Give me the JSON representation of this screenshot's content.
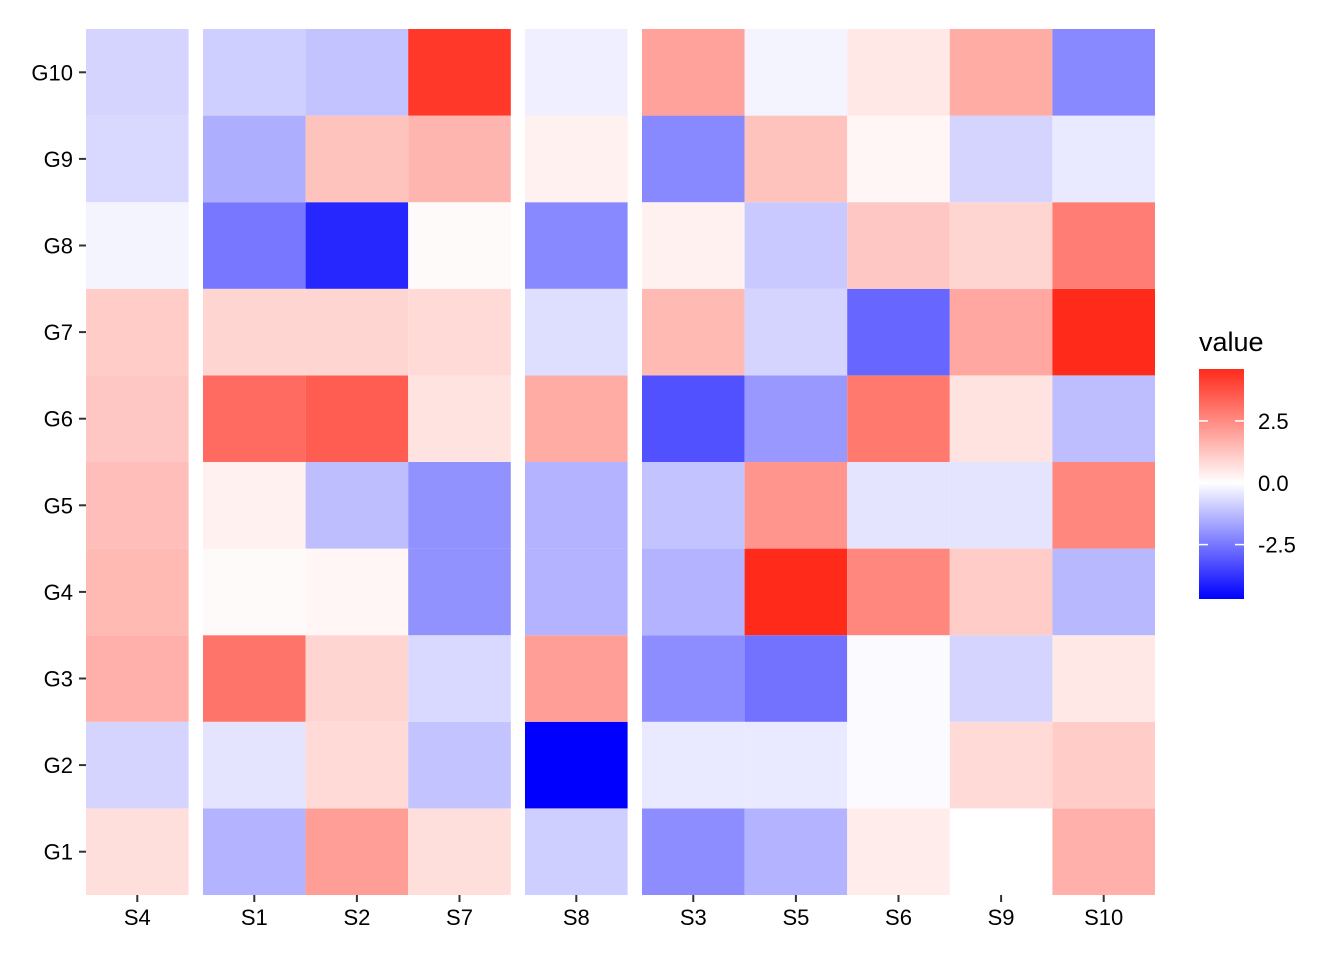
{
  "chart_data": {
    "type": "heatmap",
    "title": "",
    "xlabel": "",
    "ylabel": "",
    "rows": [
      "G1",
      "G2",
      "G3",
      "G4",
      "G5",
      "G6",
      "G7",
      "G8",
      "G9",
      "G10"
    ],
    "column_groups": [
      [
        "S4"
      ],
      [
        "S1",
        "S2",
        "S7"
      ],
      [
        "S8"
      ],
      [
        "S3",
        "S5",
        "S6",
        "S9",
        "S10"
      ]
    ],
    "columns": [
      "S4",
      "S1",
      "S2",
      "S7",
      "S8",
      "S3",
      "S5",
      "S6",
      "S9",
      "S10"
    ],
    "values": {
      "G10": [
        -0.8,
        -0.9,
        -1.1,
        4.3,
        -0.3,
        2.0,
        -0.2,
        0.5,
        1.8,
        -2.2
      ],
      "G9": [
        -0.7,
        -1.5,
        1.3,
        1.6,
        0.3,
        -2.2,
        1.3,
        0.2,
        -0.8,
        -0.4
      ],
      "G8": [
        -0.2,
        -2.5,
        -4.0,
        0.1,
        -2.2,
        0.3,
        -1.0,
        1.2,
        0.9,
        2.8
      ],
      "G7": [
        1.1,
        0.9,
        0.9,
        0.8,
        -0.6,
        1.5,
        -0.8,
        -2.8,
        1.9,
        4.6
      ],
      "G6": [
        1.2,
        3.2,
        3.5,
        0.6,
        1.8,
        -3.2,
        -1.9,
        2.9,
        0.6,
        -1.2
      ],
      "G5": [
        1.4,
        0.3,
        -1.2,
        -2.0,
        -1.4,
        -1.1,
        2.3,
        -0.5,
        -0.5,
        2.6
      ],
      "G4": [
        1.5,
        0.1,
        0.2,
        -2.0,
        -1.4,
        -1.4,
        4.6,
        2.6,
        1.1,
        -1.3
      ],
      "G3": [
        1.7,
        3.0,
        0.9,
        -0.7,
        2.1,
        -2.1,
        -2.6,
        -0.1,
        -0.8,
        0.5
      ],
      "G2": [
        -0.8,
        -0.5,
        0.8,
        -1.1,
        -4.7,
        -0.4,
        -0.4,
        -0.1,
        0.8,
        1.1
      ],
      "G1": [
        0.7,
        -1.4,
        2.1,
        0.7,
        -0.9,
        -2.1,
        -1.4,
        0.4,
        0.0,
        1.7
      ]
    },
    "legend": {
      "title": "value",
      "position": "right",
      "ticks": [
        2.5,
        0.0,
        -2.5
      ],
      "tick_labels": [
        "2.5",
        "0.0",
        "-2.5"
      ],
      "range": [
        -4.7,
        4.6
      ],
      "low_color": "#0000FF",
      "mid_color": "#FFFFFF",
      "high_color": "#FF2A1A"
    },
    "grid": false
  }
}
